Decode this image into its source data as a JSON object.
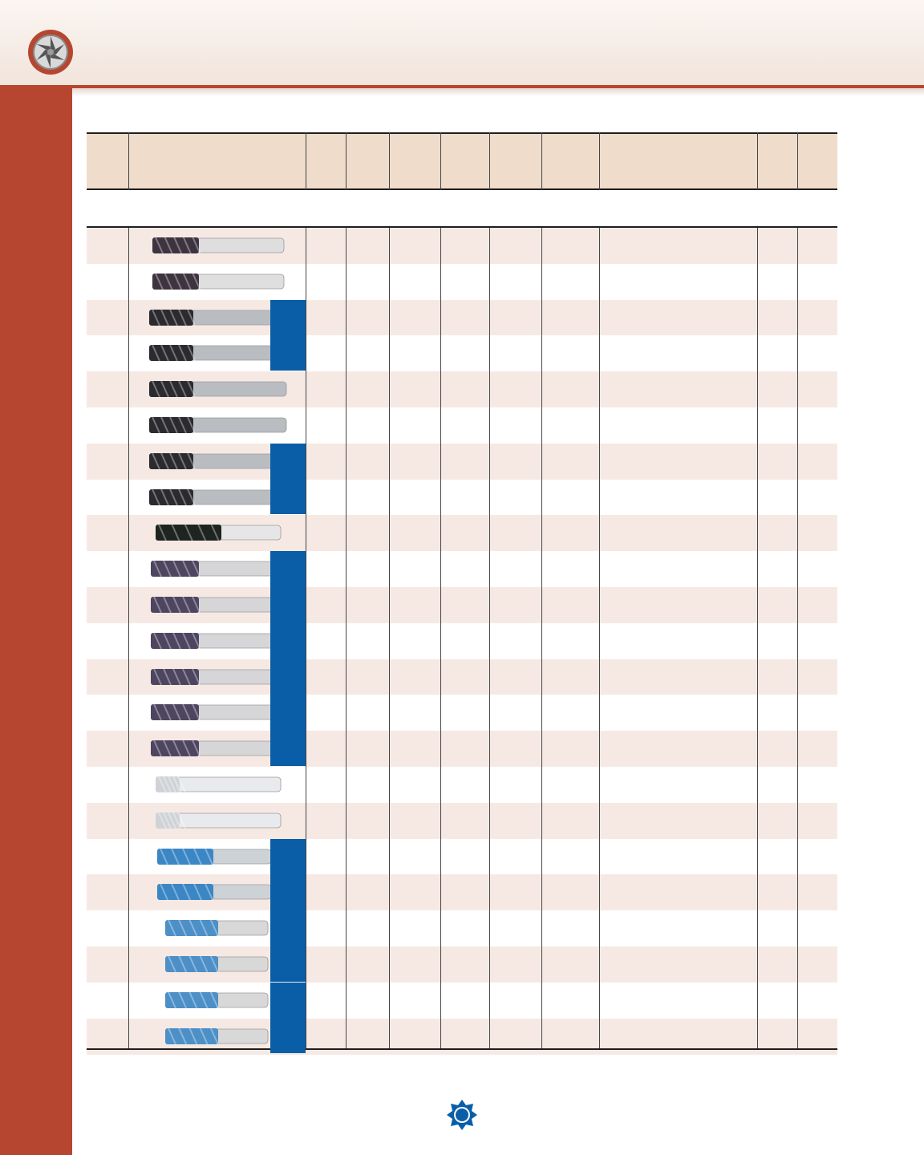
{
  "page": {
    "brand_colors": {
      "accent": "#b64630",
      "header_bg": "#efdccb",
      "row_shade": "#f6e9e4",
      "highlight_blue": "#0a5ea8"
    },
    "logo_icon": "end-mill-cross-section-icon",
    "footer_logo_icon": "osg-logo-icon"
  },
  "table": {
    "columns": [
      "",
      "",
      "",
      "",
      "",
      "",
      "",
      "",
      "",
      "",
      ""
    ],
    "rows": [
      {
        "tool": "dark-coated-end-mill",
        "shaded": true
      },
      {
        "tool": "dark-coated-end-mill",
        "shaded": false
      },
      {
        "tool": "black-coated-end-mill",
        "shaded": true
      },
      {
        "tool": "black-coated-end-mill",
        "shaded": false
      },
      {
        "tool": "black-coated-end-mill",
        "shaded": true
      },
      {
        "tool": "black-coated-end-mill",
        "shaded": false
      },
      {
        "tool": "black-coated-end-mill",
        "shaded": true
      },
      {
        "tool": "black-coated-end-mill",
        "shaded": false
      },
      {
        "tool": "black-short-end-mill",
        "shaded": true
      },
      {
        "tool": "purple-coated-end-mill",
        "shaded": false
      },
      {
        "tool": "purple-coated-end-mill",
        "shaded": true
      },
      {
        "tool": "purple-coated-end-mill",
        "shaded": false
      },
      {
        "tool": "purple-coated-end-mill",
        "shaded": true
      },
      {
        "tool": "purple-coated-end-mill",
        "shaded": false
      },
      {
        "tool": "purple-coated-end-mill",
        "shaded": true
      },
      {
        "tool": "uncoated-carbide-end-mill",
        "shaded": false
      },
      {
        "tool": "uncoated-carbide-end-mill",
        "shaded": true
      },
      {
        "tool": "blue-coated-end-mill",
        "shaded": false
      },
      {
        "tool": "blue-coated-end-mill",
        "shaded": true
      },
      {
        "tool": "blue-coated-stub-end-mill",
        "shaded": false
      },
      {
        "tool": "blue-coated-stub-end-mill",
        "shaded": true
      },
      {
        "tool": "blue-coated-stub-end-mill",
        "shaded": false
      },
      {
        "tool": "blue-coated-stub-end-mill",
        "shaded": true
      }
    ]
  }
}
